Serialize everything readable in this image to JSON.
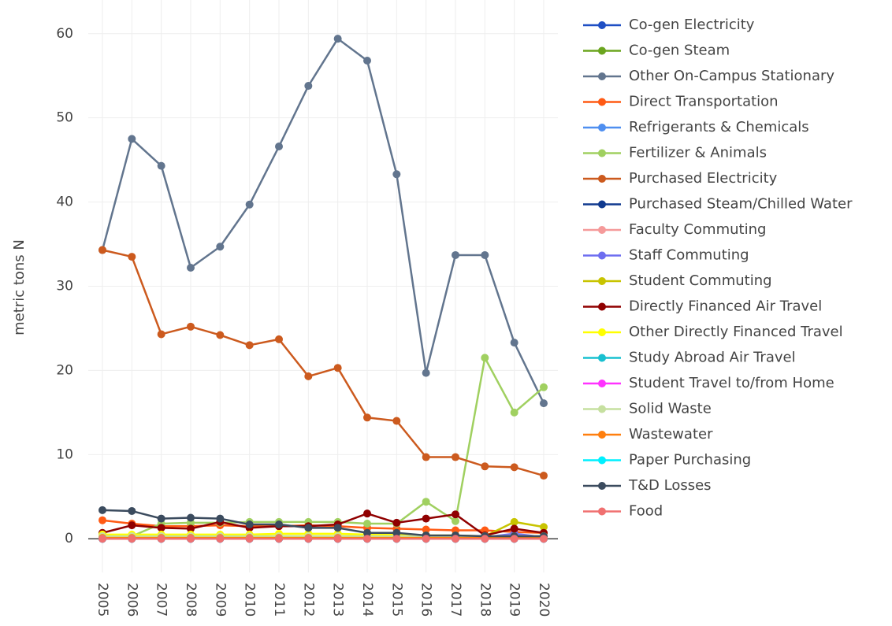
{
  "chart_data": {
    "type": "line",
    "y_label": "metric tons N",
    "categories": [
      "2005",
      "2006",
      "2007",
      "2008",
      "2009",
      "2010",
      "2011",
      "2012",
      "2013",
      "2014",
      "2015",
      "2016",
      "2017",
      "2018",
      "2019",
      "2020"
    ],
    "ylim": [
      -4,
      64
    ],
    "yticks": [
      0,
      10,
      20,
      30,
      40,
      50,
      60
    ],
    "grid": true,
    "series": [
      {
        "name": "Co-gen Electricity",
        "color": "#1f4fc4",
        "values": [
          0,
          0,
          0,
          0,
          0,
          0,
          0,
          0,
          0,
          0,
          0,
          0,
          0,
          0,
          0,
          0
        ]
      },
      {
        "name": "Co-gen Steam",
        "color": "#6ba51f",
        "values": [
          0,
          0,
          0,
          0,
          0,
          0,
          0,
          0,
          0,
          0,
          0,
          0,
          0,
          0,
          0,
          0
        ]
      },
      {
        "name": "Other On-Campus Stationary",
        "color": "#62758e",
        "values": [
          34.3,
          47.5,
          44.3,
          32.2,
          34.7,
          39.7,
          46.6,
          53.8,
          59.4,
          56.8,
          43.3,
          19.7,
          33.7,
          33.7,
          23.3,
          16.1
        ]
      },
      {
        "name": "Direct Transportation",
        "color": "#ff5a14",
        "values": [
          2.2,
          1.8,
          1.5,
          1.5,
          1.6,
          1.5,
          1.5,
          1.6,
          1.5,
          1.3,
          1.2,
          1.1,
          1.0,
          1.0,
          0.8,
          0.7
        ]
      },
      {
        "name": "Refrigerants & Chemicals",
        "color": "#4f8ff0",
        "values": [
          0,
          0,
          0,
          0,
          0,
          0,
          0,
          0,
          0,
          0,
          0,
          0,
          0,
          0,
          0,
          0
        ]
      },
      {
        "name": "Fertilizer & Animals",
        "color": "#a0d060",
        "values": [
          0.3,
          0.3,
          1.8,
          1.9,
          1.9,
          2.0,
          2.0,
          2.0,
          2.0,
          1.8,
          1.8,
          4.4,
          2.1,
          21.5,
          15.0,
          18.0
        ]
      },
      {
        "name": "Purchased Electricity",
        "color": "#cc5a1e",
        "values": [
          34.3,
          33.5,
          24.3,
          25.2,
          24.2,
          23.0,
          23.7,
          19.3,
          20.3,
          14.4,
          14.0,
          9.7,
          9.7,
          8.6,
          8.5,
          7.5
        ]
      },
      {
        "name": "Purchased Steam/Chilled Water",
        "color": "#103a8f",
        "values": [
          0,
          0,
          0,
          0,
          0,
          0,
          0,
          0,
          0,
          0,
          0,
          0,
          0,
          0,
          0,
          0
        ]
      },
      {
        "name": "Faculty Commuting",
        "color": "#f59a9a",
        "values": [
          0.1,
          0.1,
          0.1,
          0.1,
          0.1,
          0.1,
          0.1,
          0.1,
          0.1,
          0.1,
          0.1,
          0.1,
          0.1,
          0.1,
          0.1,
          0.1
        ]
      },
      {
        "name": "Staff Commuting",
        "color": "#6e6ef0",
        "values": [
          0.2,
          0.2,
          0.2,
          0.2,
          0.2,
          0.2,
          0.2,
          0.2,
          0.2,
          0.2,
          0.2,
          0.2,
          0.2,
          0.2,
          0.6,
          0.2
        ]
      },
      {
        "name": "Student Commuting",
        "color": "#c8c400",
        "values": [
          0.3,
          0.3,
          0.3,
          0.3,
          0.3,
          0.3,
          0.3,
          0.3,
          0.3,
          0.3,
          0.3,
          0.3,
          0.3,
          0.3,
          2.0,
          1.4
        ]
      },
      {
        "name": "Directly Financed Air Travel",
        "color": "#900000",
        "values": [
          0.7,
          1.6,
          1.3,
          1.2,
          2.0,
          1.3,
          1.5,
          1.5,
          1.7,
          3.0,
          1.9,
          2.4,
          2.9,
          0.4,
          1.2,
          0.7
        ]
      },
      {
        "name": "Other Directly Financed Travel",
        "color": "#ffff00",
        "values": [
          0.5,
          0.5,
          0.5,
          0.5,
          0.5,
          0.5,
          0.6,
          0.6,
          0.6,
          0.5,
          0.5,
          0.4,
          0.4,
          0.3,
          0.3,
          0.3
        ]
      },
      {
        "name": "Study Abroad Air Travel",
        "color": "#18c0d0",
        "values": [
          0,
          0,
          0,
          0,
          0,
          0,
          0,
          0,
          0,
          0,
          0,
          0,
          0,
          0,
          0,
          0
        ]
      },
      {
        "name": "Student Travel to/from Home",
        "color": "#ff33ff",
        "values": [
          0,
          0,
          0,
          0,
          0,
          0,
          0,
          0,
          0,
          0,
          0,
          0,
          0,
          0,
          0,
          0
        ]
      },
      {
        "name": "Solid Waste",
        "color": "#c6e0a0",
        "values": [
          0.3,
          0.3,
          0.3,
          0.3,
          0.3,
          0.3,
          0.3,
          0.3,
          0.3,
          0.3,
          0.3,
          0.3,
          0.3,
          0.3,
          0.3,
          0.3
        ]
      },
      {
        "name": "Wastewater",
        "color": "#ff7f0e",
        "values": [
          0.1,
          0.1,
          0.1,
          0.1,
          0.1,
          0.1,
          0.1,
          0.1,
          0.1,
          0.1,
          0.1,
          0.1,
          0.1,
          0.1,
          0.1,
          0.1
        ]
      },
      {
        "name": "Paper Purchasing",
        "color": "#00f0ff",
        "values": [
          0,
          0,
          0,
          0,
          0,
          0,
          0,
          0,
          0,
          0,
          0,
          0,
          0,
          0,
          0,
          0
        ]
      },
      {
        "name": "T&D Losses",
        "color": "#3b4b5e",
        "values": [
          3.4,
          3.3,
          2.4,
          2.5,
          2.4,
          1.7,
          1.7,
          1.3,
          1.3,
          0.7,
          0.7,
          0.4,
          0.4,
          0.3,
          0.3,
          0.3
        ]
      },
      {
        "name": "Food",
        "color": "#f07070",
        "values": [
          0,
          0,
          0,
          0,
          0,
          0,
          0,
          0,
          0,
          0,
          0,
          0,
          0,
          0,
          0,
          0
        ]
      }
    ]
  }
}
